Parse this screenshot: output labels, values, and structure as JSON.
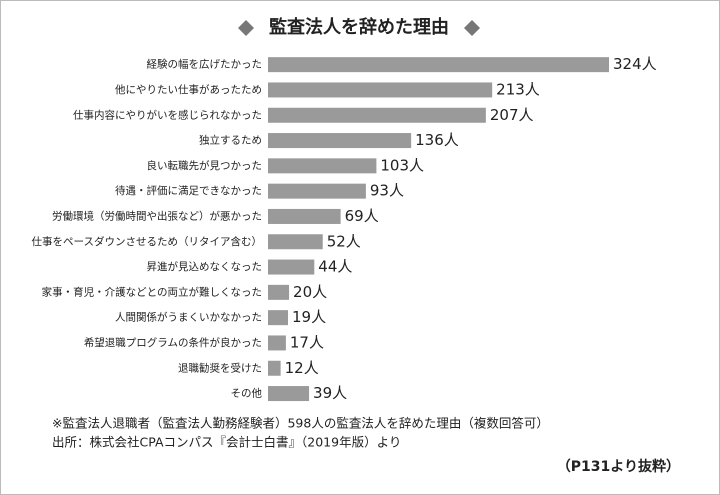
{
  "chart_data": {
    "type": "bar",
    "orientation": "horizontal",
    "title": "監査法人を辞めた理由",
    "categories": [
      "経験の幅を広げたかった",
      "他にやりたい仕事があったため",
      "仕事内容にやりがいを感じられなかった",
      "独立するため",
      "良い転職先が見つかった",
      "待遇・評価に満足できなかった",
      "労働環境（労働時間や出張など）が悪かった",
      "仕事をペースダウンさせるため（リタイア含む）",
      "昇進が見込めなくなった",
      "家事・育児・介護などとの両立が難しくなった",
      "人間関係がうまくいかなかった",
      "希望退職プログラムの条件が良かった",
      "退職勧奨を受けた",
      "その他"
    ],
    "values": [
      324,
      213,
      207,
      136,
      103,
      93,
      69,
      52,
      44,
      20,
      19,
      17,
      12,
      39
    ],
    "value_labels": [
      "324人",
      "213人",
      "207人",
      "136人",
      "103人",
      "93人",
      "69人",
      "52人",
      "44人",
      "20人",
      "19人",
      "17人",
      "12人",
      "39人"
    ],
    "color": "#9a9a9a",
    "notes": [
      "※監査法人退職者（監査法人勤務経験者）598人の監査法人を辞めた理由（複数回答可）",
      "出所：株式会社CPAコンパス『会計士白書』（2019年版）より"
    ],
    "source_page": "（P131より抜粋）"
  }
}
